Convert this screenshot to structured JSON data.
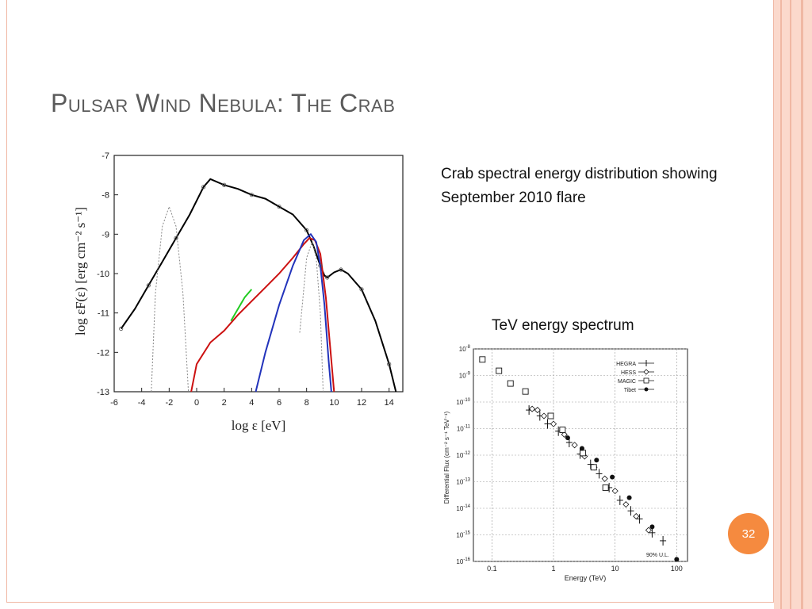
{
  "slide": {
    "title": "Pulsar Wind Nebula: The Crab",
    "caption_sed": "Crab spectral energy distribution showing September 2010 flare",
    "caption_tev": "TeV energy spectrum",
    "page_number": "32",
    "accent_color": "#f58a3f",
    "frame_color": "#f0b8a4"
  },
  "chart_data": [
    {
      "type": "line",
      "xlabel": "log ε [eV]",
      "ylabel": "log εF(ε) [erg cm⁻² s⁻¹]",
      "xlim": [
        -6,
        15
      ],
      "ylim": [
        -13,
        -7
      ],
      "xticks": [
        "-6",
        "-4",
        "-2",
        "0",
        "2",
        "4",
        "6",
        "8",
        "10",
        "12",
        "14"
      ],
      "yticks": [
        "-7",
        "-8",
        "-9",
        "-10",
        "-11",
        "-12",
        "-13"
      ],
      "series": [
        {
          "color": "#000000",
          "style": "solid",
          "x": [
            -5.5,
            -4.5,
            -3.5,
            -2.5,
            -1.5,
            -0.5,
            0.5,
            1.0,
            2,
            3,
            4,
            5,
            6,
            7,
            8,
            8.5,
            9.0,
            9.3,
            9.5,
            10,
            10.5,
            11,
            12,
            13,
            14,
            14.5
          ],
          "y": [
            -11.4,
            -10.9,
            -10.3,
            -9.7,
            -9.1,
            -8.5,
            -7.8,
            -7.6,
            -7.75,
            -7.85,
            -8.0,
            -8.1,
            -8.3,
            -8.5,
            -8.9,
            -9.3,
            -9.8,
            -10.05,
            -10.1,
            -9.97,
            -9.9,
            -10.0,
            -10.4,
            -11.2,
            -12.3,
            -13.0
          ]
        },
        {
          "color": "#888888",
          "style": "dotted",
          "x": [
            -3.3,
            -3.0,
            -2.5,
            -2.0,
            -1.5,
            -1.0,
            -0.6
          ],
          "y": [
            -13,
            -10.5,
            -8.8,
            -8.3,
            -8.8,
            -10.5,
            -13
          ]
        },
        {
          "color": "#888888",
          "style": "dotted",
          "x": [
            7.5,
            8.0,
            8.4,
            8.7,
            9.0,
            9.2
          ],
          "y": [
            -11.5,
            -9.6,
            -9.2,
            -9.6,
            -11.0,
            -13.0
          ]
        },
        {
          "color": "#cc1111",
          "style": "solid",
          "x": [
            -0.4,
            0.0,
            1.0,
            2.0,
            3.0,
            4.0,
            5.0,
            6.0,
            7.0,
            7.8,
            8.2,
            8.6,
            9.0,
            9.4,
            9.7,
            10.0
          ],
          "y": [
            -13,
            -12.3,
            -11.75,
            -11.45,
            -11.05,
            -10.7,
            -10.35,
            -10.0,
            -9.6,
            -9.25,
            -9.1,
            -9.15,
            -9.5,
            -10.6,
            -11.8,
            -13
          ]
        },
        {
          "color": "#2233bb",
          "style": "solid",
          "x": [
            4.3,
            5.0,
            6.0,
            7.0,
            7.8,
            8.3,
            8.7,
            9.0,
            9.3,
            9.6,
            9.8
          ],
          "y": [
            -13,
            -12.0,
            -10.8,
            -9.8,
            -9.15,
            -9.0,
            -9.2,
            -9.8,
            -10.8,
            -12.2,
            -13
          ]
        },
        {
          "color": "#22cc22",
          "style": "solid",
          "x": [
            2.5,
            3.5,
            4.0
          ],
          "y": [
            -11.2,
            -10.6,
            -10.4
          ]
        }
      ]
    },
    {
      "type": "scatter",
      "xlabel": "Energy (TeV)",
      "ylabel": "Differential Flux (cm⁻² s⁻¹ TeV⁻¹)",
      "xscale": "log",
      "yscale": "log",
      "xlim": [
        0.05,
        150
      ],
      "ylim": [
        1e-16,
        1e-08
      ],
      "xticks": [
        "0.1",
        "1",
        "10",
        "100"
      ],
      "ytick_exponents": [
        "-8",
        "-9",
        "-10",
        "-11",
        "-12",
        "-13",
        "-14",
        "-15",
        "-16"
      ],
      "legend_position": "top-right",
      "annotation": "90% U.L.",
      "series": [
        {
          "name": "HEGRA",
          "marker": "plus",
          "x": [
            0.4,
            0.6,
            0.8,
            1.2,
            1.8,
            2.7,
            4.0,
            5.5,
            8,
            12,
            18,
            25,
            40,
            60
          ],
          "y": [
            5e-11,
            3e-11,
            1.5e-11,
            8e-12,
            3e-12,
            1.1e-12,
            4.5e-13,
            2e-13,
            6e-14,
            2e-14,
            8e-15,
            4e-15,
            1.2e-15,
            6e-16
          ]
        },
        {
          "name": "HESS",
          "marker": "diamond",
          "x": [
            0.45,
            0.55,
            0.7,
            1.0,
            1.5,
            2.2,
            3.2,
            4.6,
            6.8,
            10,
            15,
            22,
            35
          ],
          "y": [
            5.5e-11,
            5e-11,
            3e-11,
            1.5e-11,
            6e-12,
            2.4e-12,
            9e-13,
            3.5e-13,
            1.3e-13,
            4.5e-14,
            1.4e-14,
            5e-15,
            1.5e-15
          ]
        },
        {
          "name": "MAGIC",
          "marker": "square",
          "x": [
            0.07,
            0.13,
            0.2,
            0.35,
            0.9,
            1.4,
            3.0,
            4.5,
            7.0
          ],
          "y": [
            4e-09,
            1.5e-09,
            5e-10,
            2.5e-10,
            3e-11,
            9e-12,
            1.2e-12,
            3.5e-13,
            6e-14
          ]
        },
        {
          "name": "Tibet",
          "marker": "circle",
          "x": [
            1.7,
            2.9,
            5.0,
            9.0,
            17,
            40,
            100
          ],
          "y": [
            4.5e-12,
            1.8e-12,
            6.5e-13,
            1.5e-13,
            2.5e-14,
            2e-15,
            1.2e-16
          ]
        }
      ]
    }
  ]
}
